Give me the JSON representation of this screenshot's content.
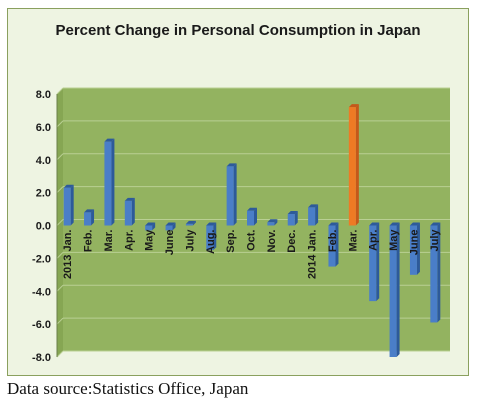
{
  "chart_data": {
    "type": "bar",
    "title": "Percent Change in Personal Consumption in Japan",
    "categories": [
      "2013 Jan.",
      "Feb.",
      "Mar.",
      "Apr.",
      "May",
      "June",
      "July",
      "Aug.",
      "Sep.",
      "Oct.",
      "Nov.",
      "Dec.",
      "2014 Jan.",
      "Feb.",
      "Mar.",
      "Apr.",
      "May",
      "June",
      "July"
    ],
    "values": [
      2.3,
      0.8,
      5.1,
      1.5,
      -0.3,
      -0.3,
      0.1,
      -1.5,
      3.6,
      0.9,
      0.2,
      0.7,
      1.1,
      -2.5,
      7.2,
      -4.6,
      -8.0,
      -3.0,
      -5.9
    ],
    "highlight_index": 14,
    "ylim": [
      -8.0,
      8.0
    ],
    "yticks": [
      8.0,
      6.0,
      4.0,
      2.0,
      0.0,
      -2.0,
      -4.0,
      -6.0,
      -8.0
    ],
    "ytick_labels": [
      "8.0",
      "6.0",
      "4.0",
      "2.0",
      "0.0",
      "-2.0",
      "-4.0",
      "-6.0",
      "-8.0"
    ],
    "xlabel": "",
    "ylabel": "",
    "grid": true,
    "colors": {
      "bar": "#4a7ec8",
      "bar_dark": "#2d5a9a",
      "bar_highlight": "#ee7a24",
      "bar_highlight_dark": "#c4581a",
      "plot_background": "#93b360",
      "grid": "#b9cf93"
    }
  },
  "source_note": "Data source:Statistics Office, Japan"
}
